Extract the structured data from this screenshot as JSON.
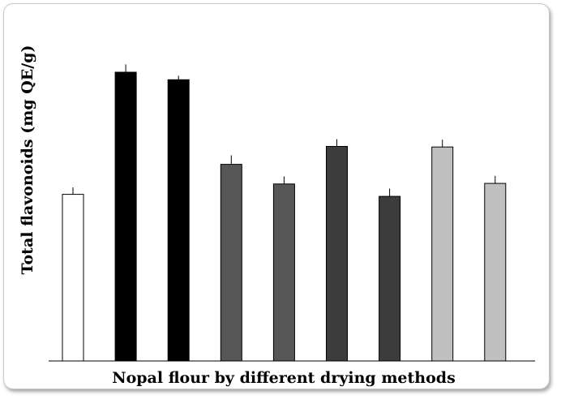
{
  "chart_data": {
    "type": "bar",
    "title": "",
    "xlabel": "Nopal flour by different drying methods",
    "ylabel": "Total flavonoids  (mg QE/g)",
    "ylim": [
      0,
      100
    ],
    "categories": [
      "",
      "",
      "",
      "",
      "",
      "",
      "",
      "",
      ""
    ],
    "values": [
      57.7,
      100,
      97.4,
      68.1,
      61.3,
      74.3,
      57.0,
      74.1,
      61.5
    ],
    "errors": [
      2.4,
      2.7,
      1.4,
      3.1,
      2.6,
      2.5,
      2.7,
      2.5,
      2.6
    ],
    "bar_colors": [
      "#ffffff",
      "#000000",
      "#000000",
      "#575757",
      "#575757",
      "#3c3c3c",
      "#3c3c3c",
      "#c0c0c0",
      "#c0c0c0"
    ],
    "grid": false,
    "legend": "none"
  }
}
